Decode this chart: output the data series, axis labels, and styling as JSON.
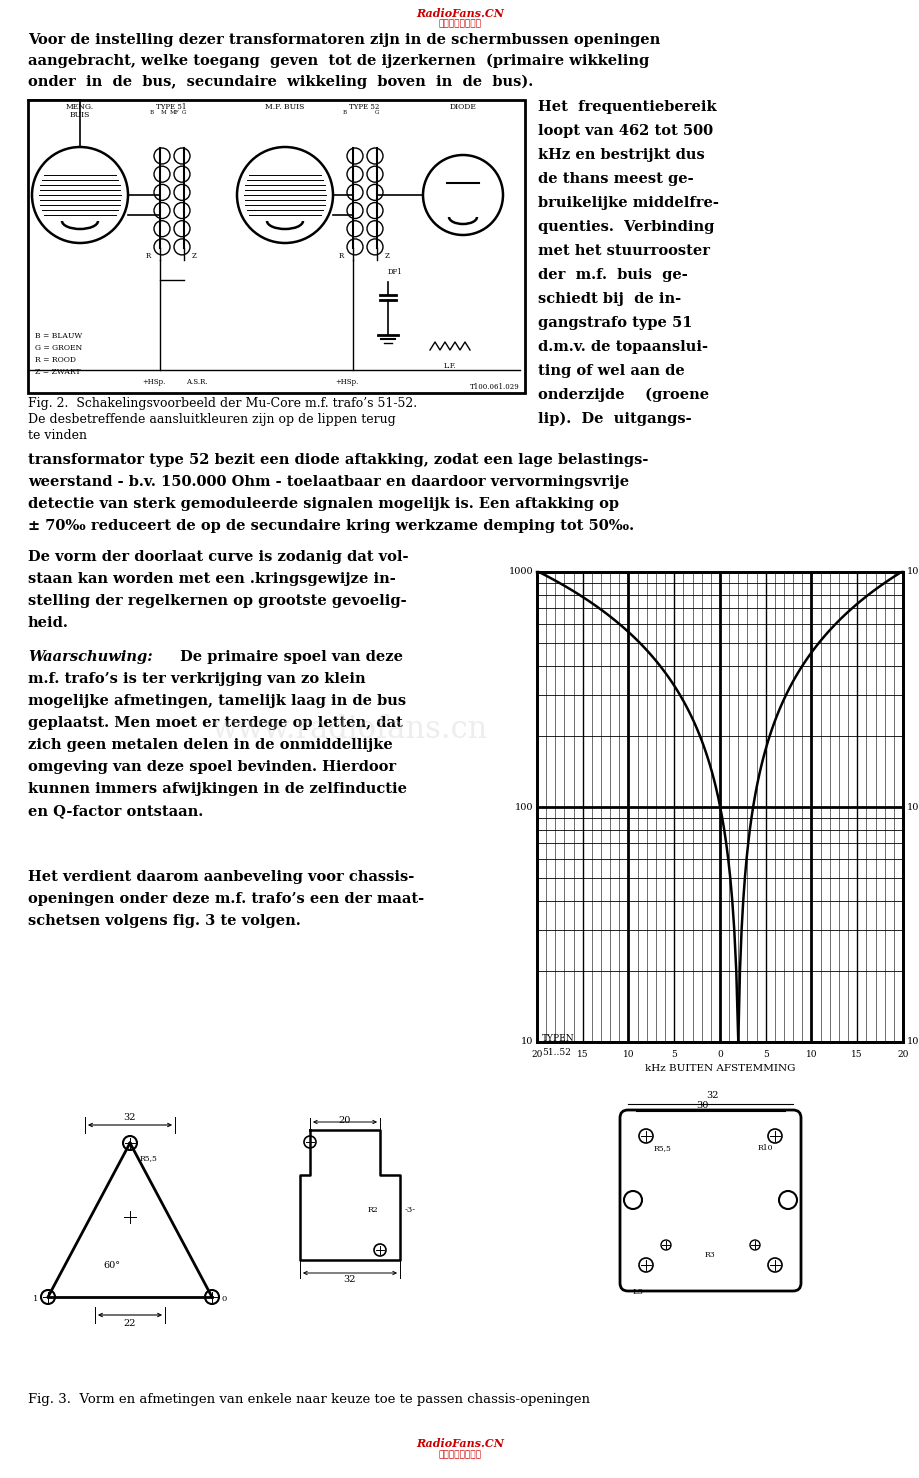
{
  "bg_color": "#ffffff",
  "header_color": "#cc0000",
  "header_text": "RadioFans.CN",
  "header_subtext": "收音机好者资料库",
  "watermark": "www.radiofans.cn",
  "footer_text": "RadioFans.CN",
  "footer_subtext": "收音机好者资料库",
  "text_color": "#000000",
  "para1_line1": "Voor de instelling dezer transformatoren zijn in de schermbussen openingen",
  "para1_line2": "aangebracht, welke toegang  geven  tot de ijzerkernen  (primaire wikkeling",
  "para1_line3": "onder  in  de  bus,  secundaire  wikkeling  boven  in  de  bus).",
  "para_right": [
    "Het  frequentiebereik",
    "loopt van 462 tot 500",
    "kHz en bestrijkt dus",
    "de thans meest ge-",
    "bruikelijke middelfre-",
    "quenties.  Verbinding",
    "met het stuurrooster",
    "der  m.f.  buis  ge-",
    "schiedt bij  de in-",
    "gangstrafo type 51",
    "d.m.v. de topaanslui-",
    "ting of wel aan de",
    "onderzijde    (groene",
    "lip).  De  uitgangs-"
  ],
  "para2": [
    "transformator type 52 bezit een diode aftakking, zodat een lage belastings-",
    "weerstand - b.v. 150.000 Ohm - toelaatbaar en daardoor vervormingsvrije",
    "detectie van sterk gemoduleerde signalen mogelijk is. Een aftakking op",
    "± 70‰ reduceert de op de secundaire kring werkzame demping tot 50‰."
  ],
  "para3": [
    "De vorm der doorlaat curve is zodanig dat vol-",
    "staan kan worden met een .kringsgewijze in-",
    "stelling der regelkernen op grootste gevoelig-",
    "heid."
  ],
  "para4": [
    "Waarschuwing: De primaire spoel van deze",
    "m.f. trafo’s is ter verkrijging van zo klein",
    "mogelijke afmetingen, tamelijk laag in de bus",
    "geplaatst. Men moet er terdege op letten, dat",
    "zich geen metalen delen in de onmiddellijke",
    "omgeving van deze spoel bevinden. Hierdoor",
    "kunnen immers afwijkingen in de zelfinductie",
    "en Q-factor ontstaan."
  ],
  "para5": [
    "Het verdient daarom aanbeveling voor chassis-",
    "openingen onder deze m.f. trafo’s een der maat-",
    "schetsen volgens fig. 3 te volgen."
  ],
  "fig2_cap1": "Fig. 2.  Schakelingsvoorbeeld der Mu-Core m.f. trafo’s 51-52.",
  "fig2_cap2": "De desbetreffende aansluitkleuren zijn op de lippen terug",
  "fig2_cap3": "te vinden",
  "fig3_caption": "Fig. 3.  Vorm en afmetingen van enkele naar keuze toe te passen chassis-openingen"
}
